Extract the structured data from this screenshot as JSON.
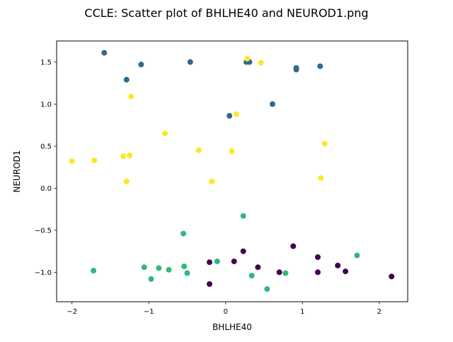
{
  "chart_data": {
    "type": "scatter",
    "title": "CCLE: Scatter plot of BHLHE40 and NEUROD1.png",
    "xlabel": "BHLHE40",
    "ylabel": "NEUROD1",
    "xlim": [
      -2.2,
      2.37
    ],
    "ylim": [
      -1.35,
      1.75
    ],
    "grid": false,
    "legend": "none",
    "x_ticks": [
      {
        "value": -2,
        "label": "−2"
      },
      {
        "value": -1,
        "label": "−1"
      },
      {
        "value": 0,
        "label": "0"
      },
      {
        "value": 1,
        "label": "1"
      },
      {
        "value": 2,
        "label": "2"
      }
    ],
    "y_ticks": [
      {
        "value": -1.0,
        "label": "−1.0"
      },
      {
        "value": -0.5,
        "label": "−0.5"
      },
      {
        "value": 0.0,
        "label": "0.0"
      },
      {
        "value": 0.5,
        "label": "0.5"
      },
      {
        "value": 1.0,
        "label": "1.0"
      },
      {
        "value": 1.5,
        "label": "1.5"
      }
    ],
    "groups": [
      {
        "color": "#31688e",
        "points": [
          {
            "x": -1.58,
            "y": 1.61
          },
          {
            "x": -1.29,
            "y": 1.29
          },
          {
            "x": -1.1,
            "y": 1.47
          },
          {
            "x": -0.46,
            "y": 1.5
          },
          {
            "x": 0.05,
            "y": 0.86
          },
          {
            "x": 0.27,
            "y": 1.5
          },
          {
            "x": 0.31,
            "y": 1.5
          },
          {
            "x": 0.61,
            "y": 1.0
          },
          {
            "x": 0.92,
            "y": 1.43
          },
          {
            "x": 0.92,
            "y": 1.41
          },
          {
            "x": 1.23,
            "y": 1.45
          }
        ]
      },
      {
        "color": "#fde725",
        "points": [
          {
            "x": -2.0,
            "y": 0.32
          },
          {
            "x": -1.71,
            "y": 0.33
          },
          {
            "x": -1.33,
            "y": 0.38
          },
          {
            "x": -1.29,
            "y": 0.08
          },
          {
            "x": -1.25,
            "y": 0.39
          },
          {
            "x": -1.23,
            "y": 1.09
          },
          {
            "x": -0.79,
            "y": 0.65
          },
          {
            "x": -0.35,
            "y": 0.45
          },
          {
            "x": -0.18,
            "y": 0.08
          },
          {
            "x": 0.08,
            "y": 0.44
          },
          {
            "x": 0.14,
            "y": 0.88
          },
          {
            "x": 0.28,
            "y": 1.54
          },
          {
            "x": 0.46,
            "y": 1.49
          },
          {
            "x": 1.24,
            "y": 0.12
          },
          {
            "x": 1.29,
            "y": 0.53
          }
        ]
      },
      {
        "color": "#35b779",
        "points": [
          {
            "x": -1.72,
            "y": -0.98
          },
          {
            "x": -1.06,
            "y": -0.94
          },
          {
            "x": -0.97,
            "y": -1.08
          },
          {
            "x": -0.87,
            "y": -0.95
          },
          {
            "x": -0.74,
            "y": -0.97
          },
          {
            "x": -0.55,
            "y": -0.54
          },
          {
            "x": -0.54,
            "y": -0.93
          },
          {
            "x": -0.5,
            "y": -1.01
          },
          {
            "x": -0.11,
            "y": -0.87
          },
          {
            "x": 0.23,
            "y": -0.33
          },
          {
            "x": 0.34,
            "y": -1.04
          },
          {
            "x": 0.54,
            "y": -1.2
          },
          {
            "x": 0.78,
            "y": -1.01
          },
          {
            "x": 1.71,
            "y": -0.8
          }
        ]
      },
      {
        "color": "#440154",
        "points": [
          {
            "x": -0.21,
            "y": -0.88
          },
          {
            "x": -0.21,
            "y": -1.14
          },
          {
            "x": 0.11,
            "y": -0.87
          },
          {
            "x": 0.23,
            "y": -0.75
          },
          {
            "x": 0.42,
            "y": -0.94
          },
          {
            "x": 0.7,
            "y": -1.0
          },
          {
            "x": 0.88,
            "y": -0.69
          },
          {
            "x": 1.2,
            "y": -0.82
          },
          {
            "x": 1.2,
            "y": -1.0
          },
          {
            "x": 1.46,
            "y": -0.92
          },
          {
            "x": 1.56,
            "y": -0.99
          },
          {
            "x": 2.16,
            "y": -1.05
          }
        ]
      }
    ]
  }
}
